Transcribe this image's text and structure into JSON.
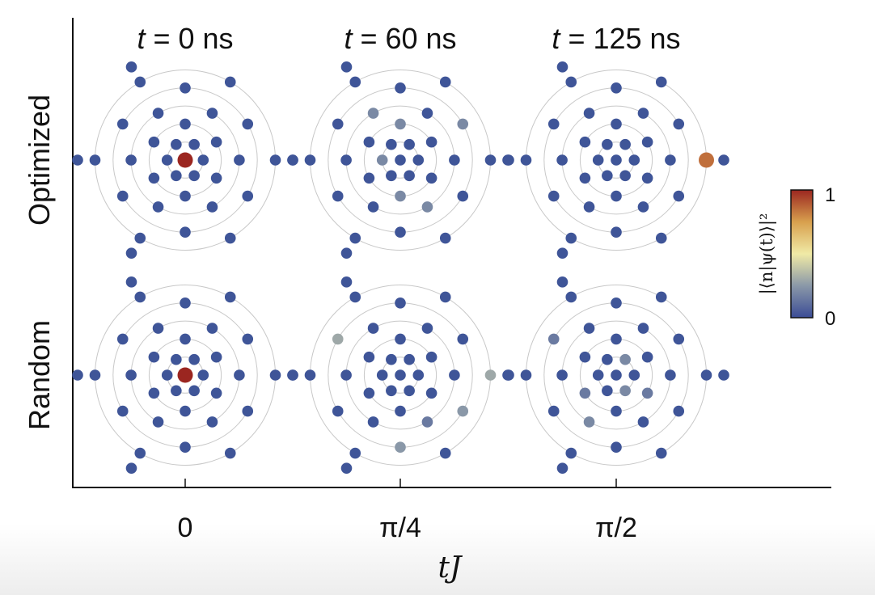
{
  "chart_data": {
    "type": "scatter",
    "panel_titles": [
      {
        "var": "t",
        "rest": " = 0 ns"
      },
      {
        "var": "t",
        "rest": " = 60 ns"
      },
      {
        "var": "t",
        "rest": " = 125 ns"
      }
    ],
    "row_labels": [
      "Optimized",
      "Random"
    ],
    "x_ticks": [
      "0",
      "π/4",
      "π/2"
    ],
    "xlabel": {
      "var1": "t",
      "var2": "J"
    },
    "colorbar": {
      "label": "|⟨n|ψ(t)⟩|²",
      "min_label": "0",
      "max_label": "1",
      "stops": [
        "#3b4c96",
        "#8a98a8",
        "#f0eaa6",
        "#d8a04e",
        "#9b2620"
      ],
      "range": [
        0,
        1
      ]
    },
    "lattice": {
      "rings": 5,
      "spokes": 6,
      "extra_outer_nodes": 12,
      "base_color": "#3f5598",
      "ring_color": "#c8c8c8"
    },
    "panels": [
      {
        "row": "Optimized",
        "tJ": "0",
        "highlights": [
          {
            "site": "center",
            "value": 1.0
          }
        ]
      },
      {
        "row": "Optimized",
        "tJ": "π/4",
        "highlights": [
          {
            "site": "r1-a3",
            "value": 0.2
          },
          {
            "site": "r2-a4",
            "value": 0.2
          },
          {
            "site": "r3-a5",
            "value": 0.2
          },
          {
            "site": "r2-a1",
            "value": 0.2
          },
          {
            "site": "r3-a2",
            "value": 0.2
          },
          {
            "site": "r4-a0",
            "value": 0.2
          }
        ]
      },
      {
        "row": "Optimized",
        "tJ": "π/2",
        "highlights": [
          {
            "site": "r5-a0",
            "value": 0.85
          }
        ]
      },
      {
        "row": "Random",
        "tJ": "0",
        "highlights": [
          {
            "site": "center",
            "value": 1.0
          }
        ]
      },
      {
        "row": "Random",
        "tJ": "π/4",
        "highlights": [
          {
            "site": "r4-a2",
            "value": 0.3
          },
          {
            "site": "r4-a4",
            "value": 0.25
          },
          {
            "site": "r5-a0",
            "value": 0.3
          },
          {
            "site": "r3-a5",
            "value": 0.15
          },
          {
            "site": "r4-a5",
            "value": 0.25
          }
        ]
      },
      {
        "row": "Random",
        "tJ": "π/2",
        "highlights": [
          {
            "site": "r4-a2",
            "value": 0.15
          },
          {
            "site": "r1-a1",
            "value": 0.2
          },
          {
            "site": "r1-a5",
            "value": 0.2
          },
          {
            "site": "r2-a3",
            "value": 0.15
          },
          {
            "site": "r3-a4",
            "value": 0.2
          },
          {
            "site": "r2-a5",
            "value": 0.15
          }
        ]
      }
    ]
  }
}
